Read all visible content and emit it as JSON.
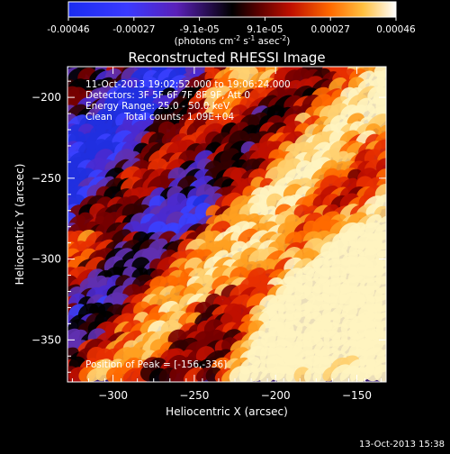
{
  "colorbar": {
    "labels": [
      "-0.00046",
      "-0.00027",
      "-9.1e-05",
      "9.1e-05",
      "0.00027",
      "0.00046"
    ],
    "unit_prefix": "(photons cm",
    "unit_exp1": "-2",
    "unit_mid": " s",
    "unit_exp2": "-1",
    "unit_mid2": " asec",
    "unit_exp3": "-2",
    "unit_suffix": ")"
  },
  "chart_data": {
    "type": "heatmap",
    "title": "Reconstructed RHESSI Image",
    "xlabel": "Heliocentric X (arcsec)",
    "ylabel": "Heliocentric Y (arcsec)",
    "xlim": [
      -328,
      -132
    ],
    "ylim": [
      -376,
      -181
    ],
    "x_ticks": [
      -300,
      -250,
      -200,
      -150
    ],
    "y_ticks": [
      -350,
      -300,
      -250,
      -200
    ],
    "colorbar_range": [
      -0.00046,
      0.00046
    ],
    "peak_position": [
      -156,
      -336
    ],
    "annotations": [
      "11-Oct-2013 19:02:52.000 to 19:06:24.000",
      "Detectors: 3F 5F 6F 7F 8F 9F, Att 0",
      "Energy Range: 25.0 - 50.0 keV",
      "Clean    Total counts: 1.09E+04"
    ],
    "peak_label": "Position of Peak = [-156,-336]"
  },
  "footer": {
    "timestamp": "13-Oct-2013 15:38"
  }
}
